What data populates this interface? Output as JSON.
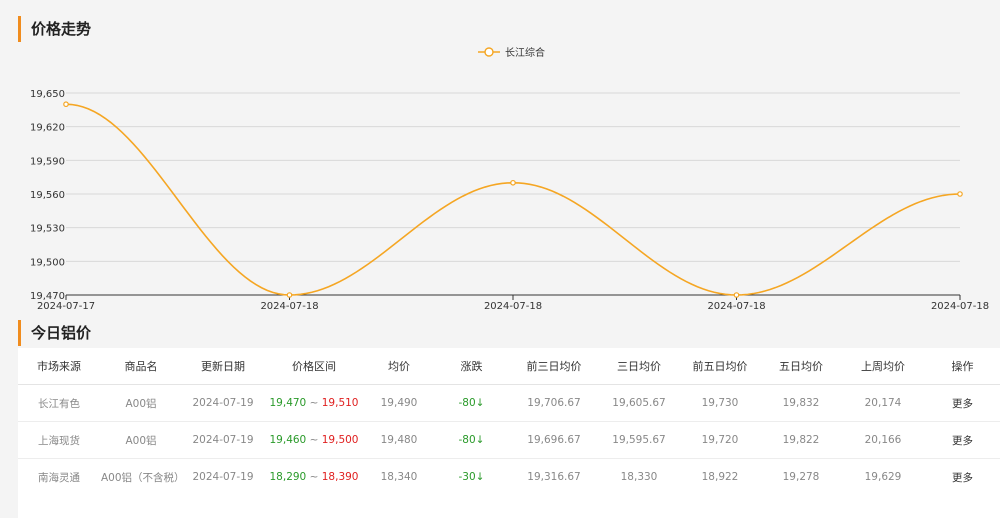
{
  "section1": {
    "title": "价格走势"
  },
  "section2": {
    "title": "今日铝价"
  },
  "chart_data": {
    "type": "line",
    "series": [
      {
        "name": "长江综合",
        "values": [
          19640,
          19470,
          19570,
          19470,
          19560
        ]
      }
    ],
    "categories": [
      "2024-07-17",
      "2024-07-18",
      "2024-07-18",
      "2024-07-18",
      "2024-07-18"
    ],
    "yticks": [
      19470,
      19500,
      19530,
      19560,
      19590,
      19620,
      19650
    ],
    "ylim": [
      19470,
      19650
    ],
    "legend": "top-center",
    "grid": true,
    "smooth": true,
    "color": "#f5a623"
  },
  "table": {
    "headers": [
      "市场来源",
      "商品名",
      "更新日期",
      "价格区间",
      "均价",
      "涨跌",
      "前三日均价",
      "三日均价",
      "前五日均价",
      "五日均价",
      "上周均价",
      "操作"
    ],
    "rows": [
      {
        "market": "长江有色",
        "product": "A00铝",
        "date": "2024-07-19",
        "low": "19,470",
        "sep": "~",
        "high": "19,510",
        "avg": "19,490",
        "change": "-80↓",
        "prev3": "19,706.67",
        "avg3": "19,605.67",
        "prev5": "19,730",
        "avg5": "19,832",
        "lastweek": "20,174",
        "action": "更多"
      },
      {
        "market": "上海现货",
        "product": "A00铝",
        "date": "2024-07-19",
        "low": "19,460",
        "sep": "~",
        "high": "19,500",
        "avg": "19,480",
        "change": "-80↓",
        "prev3": "19,696.67",
        "avg3": "19,595.67",
        "prev5": "19,720",
        "avg5": "19,822",
        "lastweek": "20,166",
        "action": "更多"
      },
      {
        "market": "南海灵通",
        "product": "A00铝（不含税）",
        "date": "2024-07-19",
        "low": "18,290",
        "sep": "~",
        "high": "18,390",
        "avg": "18,340",
        "change": "-30↓",
        "prev3": "19,316.67",
        "avg3": "18,330",
        "prev5": "18,922",
        "avg5": "19,278",
        "lastweek": "19,629",
        "action": "更多"
      }
    ]
  }
}
